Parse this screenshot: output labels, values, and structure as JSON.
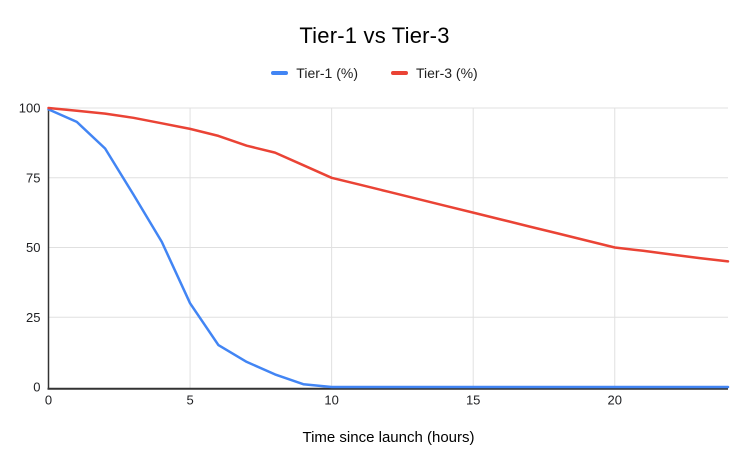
{
  "chart_data": {
    "type": "line",
    "title": "Tier-1 vs Tier-3",
    "xlabel": "Time since launch (hours)",
    "ylabel": "",
    "x": [
      0,
      1,
      2,
      3,
      4,
      5,
      6,
      7,
      8,
      9,
      10,
      11,
      12,
      13,
      14,
      15,
      16,
      17,
      18,
      19,
      20,
      21,
      22,
      23,
      24
    ],
    "series": [
      {
        "name": "Tier-1 (%)",
        "color": "#4285F4",
        "values": [
          99.5,
          95,
          85.5,
          69,
          52,
          30,
          15,
          9,
          4.5,
          1,
          0,
          0,
          0,
          0,
          0,
          0,
          0,
          0,
          0,
          0,
          0,
          0,
          0,
          0,
          0
        ]
      },
      {
        "name": "Tier-3 (%)",
        "color": "#EA4335",
        "values": [
          100,
          99,
          98,
          96.5,
          94.5,
          92.5,
          90,
          86.5,
          84,
          79.5,
          75,
          72.5,
          70,
          67.5,
          65,
          62.5,
          60,
          57.5,
          55,
          52.5,
          50,
          48.8,
          47.5,
          46.2,
          45
        ]
      }
    ],
    "xlim": [
      0,
      24
    ],
    "ylim": [
      0,
      100
    ],
    "x_ticks": [
      0,
      5,
      10,
      15,
      20
    ],
    "y_ticks": [
      0,
      25,
      50,
      75,
      100
    ],
    "grid": true,
    "legend_position": "top",
    "gridline_color": "#e0e0e0",
    "axis_color": "#333333",
    "background_color": "#ffffff"
  }
}
